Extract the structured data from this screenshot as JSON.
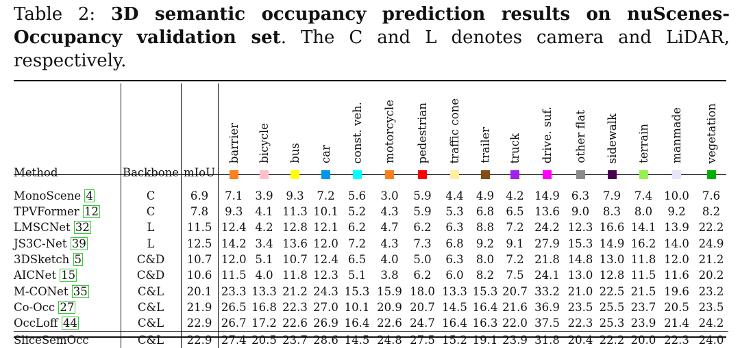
{
  "caption": {
    "label": "Table 2:",
    "title": "3D semantic occupancy prediction results on nuScenes-Occupancy validation set",
    "rest": ". The C and L denotes camera and LiDAR, respectively."
  },
  "table": {
    "headers": {
      "method": "Method",
      "backbone": "Backbone",
      "miou": "mIoU"
    },
    "classes": [
      {
        "name": "barrier",
        "color": "#ff7f1e"
      },
      {
        "name": "bicycle",
        "color": "#ffc0cb"
      },
      {
        "name": "bus",
        "color": "#ffff00"
      },
      {
        "name": "car",
        "color": "#0096f0"
      },
      {
        "name": "const. veh.",
        "color": "#00ffff"
      },
      {
        "name": "motorcycle",
        "color": "#ff7f1e"
      },
      {
        "name": "pedestrian",
        "color": "#ff0000"
      },
      {
        "name": "traffic cone",
        "color": "#ffeea0"
      },
      {
        "name": "trailer",
        "color": "#874b14"
      },
      {
        "name": "truck",
        "color": "#a020f0"
      },
      {
        "name": "drive. suf.",
        "color": "#ff00ff"
      },
      {
        "name": "other flat",
        "color": "#8c8c8c"
      },
      {
        "name": "sidewalk",
        "color": "#4b0050"
      },
      {
        "name": "terrain",
        "color": "#96f050"
      },
      {
        "name": "manmade",
        "color": "#e6e6fa"
      },
      {
        "name": "vegetation",
        "color": "#00af00"
      }
    ],
    "rows": [
      {
        "method": "MonoScene",
        "cite": "4",
        "backbone": "C",
        "miou": "6.9",
        "values": [
          "7.1",
          "3.9",
          "9.3",
          "7.2",
          "5.6",
          "3.0",
          "5.9",
          "4.4",
          "4.9",
          "4.2",
          "14.9",
          "6.3",
          "7.9",
          "7.4",
          "10.0",
          "7.6"
        ]
      },
      {
        "method": "TPVFormer",
        "cite": "12",
        "backbone": "C",
        "miou": "7.8",
        "values": [
          "9.3",
          "4.1",
          "11.3",
          "10.1",
          "5.2",
          "4.3",
          "5.9",
          "5.3",
          "6.8",
          "6.5",
          "13.6",
          "9.0",
          "8.3",
          "8.0",
          "9.2",
          "8.2"
        ]
      },
      {
        "method": "LMSCNet",
        "cite": "32",
        "backbone": "L",
        "miou": "11.5",
        "values": [
          "12.4",
          "4.2",
          "12.8",
          "12.1",
          "6.2",
          "4.7",
          "6.2",
          "6.3",
          "8.8",
          "7.2",
          "24.2",
          "12.3",
          "16.6",
          "14.1",
          "13.9",
          "22.2"
        ]
      },
      {
        "method": "JS3C-Net",
        "cite": "39",
        "backbone": "L",
        "miou": "12.5",
        "values": [
          "14.2",
          "3.4",
          "13.6",
          "12.0",
          "7.2",
          "4.3",
          "7.3",
          "6.8",
          "9.2",
          "9.1",
          "27.9",
          "15.3",
          "14.9",
          "16.2",
          "14.0",
          "24.9"
        ],
        "bold": [
          15
        ]
      },
      {
        "method": "3DSketch",
        "cite": "5",
        "backbone": "C&D",
        "miou": "10.7",
        "values": [
          "12.0",
          "5.1",
          "10.7",
          "12.4",
          "6.5",
          "4.0",
          "5.0",
          "6.3",
          "8.0",
          "7.2",
          "21.8",
          "14.8",
          "13.0",
          "11.8",
          "12.0",
          "21.2"
        ]
      },
      {
        "method": "AICNet",
        "cite": "15",
        "backbone": "C&D",
        "miou": "10.6",
        "values": [
          "11.5",
          "4.0",
          "11.8",
          "12.3",
          "5.1",
          "3.8",
          "6.2",
          "6.0",
          "8.2",
          "7.5",
          "24.1",
          "13.0",
          "12.8",
          "11.5",
          "11.6",
          "20.2"
        ]
      },
      {
        "method": "M-CONet",
        "cite": "35",
        "backbone": "C&L",
        "miou": "20.1",
        "values": [
          "23.3",
          "13.3",
          "21.2",
          "24.3",
          "15.3",
          "15.9",
          "18.0",
          "13.3",
          "15.3",
          "20.7",
          "33.2",
          "21.0",
          "22.5",
          "21.5",
          "19.6",
          "23.2"
        ]
      },
      {
        "method": "Co-Occ",
        "cite": "27",
        "backbone": "C&L",
        "miou": "21.9",
        "values": [
          "26.5",
          "16.8",
          "22.3",
          "27.0",
          "10.1",
          "20.9",
          "20.7",
          "14.5",
          "16.4",
          "21.6",
          "36.9",
          "23.5",
          "25.5",
          "23.7",
          "20.5",
          "23.5"
        ],
        "bold": [
          11,
          12
        ]
      },
      {
        "method": "OccLoff",
        "cite": "44",
        "backbone": "C&L",
        "miou": "22.9",
        "miou_bold": true,
        "values": [
          "26.7",
          "17.2",
          "22.6",
          "26.9",
          "16.4",
          "22.6",
          "24.7",
          "16.4",
          "16.3",
          "22.0",
          "37.5",
          "22.3",
          "25.3",
          "23.9",
          "21.4",
          "24.2"
        ],
        "bold": [
          4,
          10,
          13
        ]
      },
      {
        "method": "SliceSemOcc",
        "cite": "",
        "backbone": "C&L",
        "miou": "22.9",
        "miou_bold": true,
        "values": [
          "27.4",
          "20.5",
          "23.7",
          "28.6",
          "14.5",
          "24.8",
          "27.5",
          "15.2",
          "19.1",
          "23.9",
          "31.8",
          "20.4",
          "22.2",
          "20.0",
          "22.3",
          "24.0"
        ],
        "bold": [
          0,
          1,
          2,
          3,
          5,
          6,
          7,
          8,
          9,
          14
        ]
      }
    ]
  }
}
